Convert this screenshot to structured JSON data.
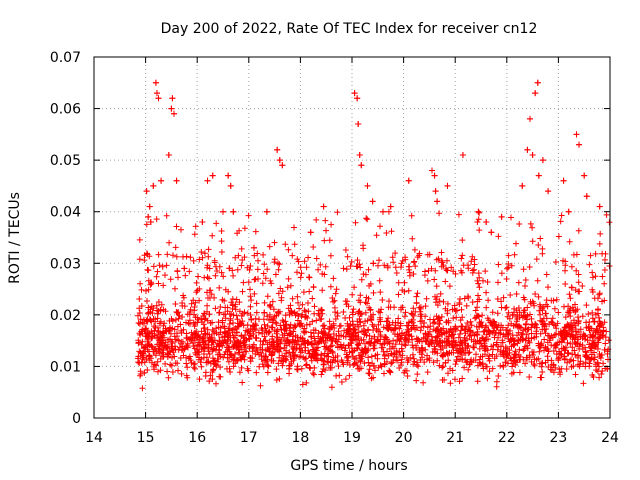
{
  "chart_data": {
    "type": "scatter",
    "title": "Day 200 of 2022, Rate Of TEC Index for receiver cn12",
    "xlabel": "GPS time / hours",
    "ylabel": "ROTI / TECUs",
    "xlim": [
      14,
      24
    ],
    "ylim": [
      0,
      0.07
    ],
    "xticks": [
      "14",
      "15",
      "16",
      "17",
      "18",
      "19",
      "20",
      "21",
      "22",
      "23",
      "24"
    ],
    "yticks": [
      "0",
      "0.01",
      "0.02",
      "0.03",
      "0.04",
      "0.05",
      "0.06",
      "0.07"
    ],
    "grid": true,
    "marker": "+",
    "color": "#ff0000",
    "data_start_hour": 14.85,
    "data_end_hour": 24.0,
    "baseline_range": [
      0.005,
      0.025
    ],
    "series": [
      {
        "name": "cn12",
        "x": [
          15.02,
          15.05,
          15.08,
          15.1,
          15.15,
          15.2,
          15.22,
          15.25,
          15.3,
          15.45,
          15.5,
          15.52,
          15.55,
          15.6,
          15.75,
          16.1,
          16.2,
          16.3,
          16.5,
          16.6,
          16.65,
          16.7,
          17.1,
          17.35,
          17.55,
          17.6,
          17.65,
          18.2,
          18.45,
          19.05,
          19.1,
          19.12,
          19.15,
          19.18,
          19.3,
          19.4,
          19.6,
          19.75,
          20.1,
          20.55,
          20.6,
          20.62,
          20.65,
          20.85,
          21.15,
          21.45,
          21.6,
          21.7,
          21.9,
          22.3,
          22.4,
          22.45,
          22.5,
          22.55,
          22.6,
          22.62,
          22.7,
          22.8,
          23.1,
          23.2,
          23.35,
          23.4,
          23.5,
          23.55,
          23.8
        ],
        "y": [
          0.044,
          0.039,
          0.041,
          0.038,
          0.045,
          0.065,
          0.063,
          0.062,
          0.046,
          0.051,
          0.06,
          0.062,
          0.059,
          0.046,
          0.029,
          0.038,
          0.046,
          0.047,
          0.04,
          0.047,
          0.045,
          0.04,
          0.033,
          0.04,
          0.052,
          0.05,
          0.049,
          0.036,
          0.041,
          0.063,
          0.062,
          0.057,
          0.051,
          0.049,
          0.045,
          0.042,
          0.04,
          0.041,
          0.046,
          0.048,
          0.047,
          0.044,
          0.042,
          0.045,
          0.051,
          0.04,
          0.038,
          0.036,
          0.039,
          0.045,
          0.052,
          0.058,
          0.051,
          0.063,
          0.065,
          0.047,
          0.05,
          0.044,
          0.046,
          0.04,
          0.055,
          0.053,
          0.047,
          0.043,
          0.041
        ]
      }
    ]
  }
}
